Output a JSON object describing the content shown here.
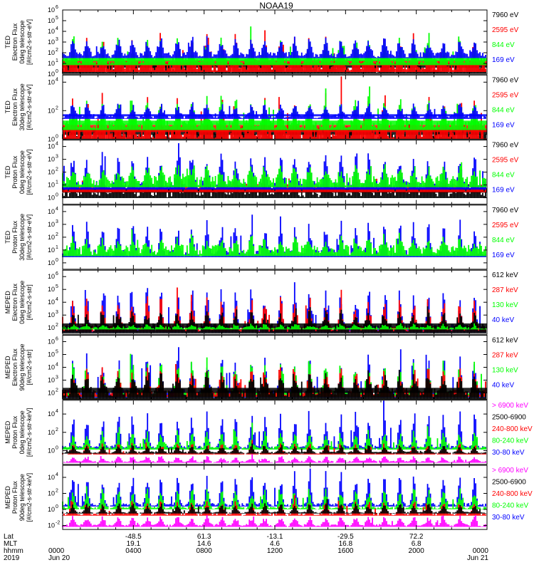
{
  "chart_data": {
    "type": "bar",
    "title": "NOAA19",
    "x_range_hours": [
      0,
      24
    ],
    "panels": [
      {
        "id": "ted-e-0",
        "ylabel_lines": [
          "TED",
          "Electron Flux",
          "0deg telescope",
          "[#/cm2-s-str-eV]"
        ],
        "ylim_exp": [
          0,
          6
        ],
        "yticks": [
          {
            "t": "10",
            "e": "0"
          },
          {
            "t": "10",
            "e": "1"
          },
          {
            "t": "10",
            "e": "2"
          },
          {
            "t": "10",
            "e": "3"
          },
          {
            "t": "10",
            "e": "4"
          },
          {
            "t": "10",
            "e": "5"
          },
          {
            "t": "10",
            "e": "6"
          }
        ],
        "series": [
          {
            "name": "7960 eV",
            "color": "#000000",
            "base": 0.6,
            "amp": 1.4,
            "noise": 0.9,
            "fill": 0.75
          },
          {
            "name": "2595 eV",
            "color": "#ff0000",
            "base": 0.8,
            "amp": 2.8,
            "noise": 1.0,
            "fill": 0.35
          },
          {
            "name": "844 eV",
            "color": "#00ff00",
            "base": 1.2,
            "amp": 2.2,
            "noise": 0.6,
            "fill": 0.18
          },
          {
            "name": "169 eV",
            "color": "#0000ff",
            "base": 1.8,
            "amp": 1.6,
            "noise": 0.5,
            "fill": 0.08
          }
        ]
      },
      {
        "id": "ted-e-30",
        "ylabel_lines": [
          "TED",
          "Electron Flux",
          "30deg telescope",
          "[#/cm2-s-str-eV]"
        ],
        "ylim_exp": [
          0,
          4.5
        ],
        "yticks": [
          {
            "t": "10",
            "e": "0"
          },
          {
            "t": "10",
            "e": "2"
          },
          {
            "t": "10",
            "e": "4"
          }
        ],
        "series": [
          {
            "name": "7960 eV",
            "color": "#000000",
            "base": 0.3,
            "amp": 1.2,
            "noise": 0.8,
            "fill": 0.8
          },
          {
            "name": "2595 eV",
            "color": "#ff0000",
            "base": 0.5,
            "amp": 2.5,
            "noise": 1.0,
            "fill": 0.35
          },
          {
            "name": "844 eV",
            "color": "#00ff00",
            "base": 1.0,
            "amp": 2.0,
            "noise": 0.6,
            "fill": 0.15
          },
          {
            "name": "169 eV",
            "color": "#0000ff",
            "base": 1.6,
            "amp": 1.0,
            "noise": 0.3,
            "fill": 0.3
          }
        ]
      },
      {
        "id": "ted-p-0",
        "ylabel_lines": [
          "TED",
          "Proton Flux",
          "0deg telescope",
          "[#/cm2-s-str-eV]"
        ],
        "ylim_exp": [
          -0.5,
          4.5
        ],
        "yticks": [
          {
            "t": "10",
            "e": "0"
          },
          {
            "t": "10",
            "e": "1"
          },
          {
            "t": "10",
            "e": "2"
          },
          {
            "t": "10",
            "e": "3"
          },
          {
            "t": "10",
            "e": "4"
          }
        ],
        "series": [
          {
            "name": "7960 eV",
            "color": "#000000",
            "base": 0.4,
            "amp": 1.0,
            "noise": 0.7,
            "fill": 0.3
          },
          {
            "name": "2595 eV",
            "color": "#ff0000",
            "base": 0.8,
            "amp": 1.3,
            "noise": 0.6,
            "fill": 0.1
          },
          {
            "name": "169 eV",
            "color": "#0000ff",
            "base": 1.0,
            "amp": 2.6,
            "noise": 0.6,
            "fill": 0.05
          },
          {
            "name": "844 eV",
            "color": "#00ff00",
            "base": 1.3,
            "amp": 1.1,
            "noise": 0.8,
            "fill": 0.05
          }
        ]
      },
      {
        "id": "ted-p-30",
        "ylabel_lines": [
          "TED",
          "Proton Flux",
          "30deg telescope",
          "[#/cm2-s-str-eV]"
        ],
        "ylim_exp": [
          -0.5,
          4.5
        ],
        "yticks": [
          {
            "t": "10",
            "e": "0"
          },
          {
            "t": "10",
            "e": "1"
          },
          {
            "t": "10",
            "e": "2"
          },
          {
            "t": "10",
            "e": "3"
          },
          {
            "t": "10",
            "e": "4"
          }
        ],
        "series": [
          {
            "name": "169 eV",
            "color": "#0000ff",
            "base": 0.8,
            "amp": 2.6,
            "noise": 0.6,
            "fill": 0.05
          },
          {
            "name": "844 eV",
            "color": "#00ff00",
            "base": 1.0,
            "amp": 1.0,
            "noise": 0.8,
            "fill": 0.05
          },
          {
            "name": "7960 eV",
            "color": "#000000",
            "base": null
          },
          {
            "name": "2595 eV",
            "color": "#ff0000",
            "base": null
          }
        ]
      },
      {
        "id": "meped-e-0",
        "ylabel_lines": [
          "MEPED",
          "Electron Flux",
          "0deg telescope",
          "[#/cm2-s-str]"
        ],
        "ylim_exp": [
          1.5,
          6.5
        ],
        "yticks": [
          {
            "t": "10",
            "e": "2"
          },
          {
            "t": "10",
            "e": "3"
          },
          {
            "t": "10",
            "e": "4"
          },
          {
            "t": "10",
            "e": "5"
          },
          {
            "t": "10",
            "e": "6"
          }
        ],
        "series": [
          {
            "name": "40 keV",
            "color": "#0000ff",
            "base": 2.0,
            "amp": 3.5,
            "noise": 0.6,
            "fill": 0.05
          },
          {
            "name": "287 keV",
            "color": "#ff0000",
            "base": 2.0,
            "amp": 2.5,
            "noise": 0.5,
            "fill": 0.05
          },
          {
            "name": "612 keV",
            "color": "#000000",
            "base": 2.0,
            "amp": 1.5,
            "noise": 0.7,
            "fill": 0.7
          },
          {
            "name": "130 keV",
            "color": "#00ff00",
            "base": 2.0,
            "amp": 0.3,
            "noise": 0.2,
            "fill": 0.02
          }
        ]
      },
      {
        "id": "meped-e-90",
        "ylabel_lines": [
          "MEPED",
          "Electron Flux",
          "90deg telescope",
          "[#/cm2-s-str]"
        ],
        "ylim_exp": [
          1.5,
          6.5
        ],
        "yticks": [
          {
            "t": "10",
            "e": "2"
          },
          {
            "t": "10",
            "e": "3"
          },
          {
            "t": "10",
            "e": "4"
          },
          {
            "t": "10",
            "e": "5"
          },
          {
            "t": "10",
            "e": "6"
          }
        ],
        "series": [
          {
            "name": "40 keV",
            "color": "#0000ff",
            "base": 2.0,
            "amp": 3.2,
            "noise": 0.6,
            "fill": 0.05
          },
          {
            "name": "130 keV",
            "color": "#00ff00",
            "base": 2.0,
            "amp": 2.6,
            "noise": 0.5,
            "fill": 0.05
          },
          {
            "name": "287 keV",
            "color": "#ff0000",
            "base": 2.0,
            "amp": 2.0,
            "noise": 0.5,
            "fill": 0.05
          },
          {
            "name": "612 keV",
            "color": "#000000",
            "base": 2.0,
            "amp": 1.6,
            "noise": 0.8,
            "fill": 0.6
          }
        ]
      },
      {
        "id": "meped-p-0",
        "ylabel_lines": [
          "MEPED",
          "Proton Flux",
          "0deg telescope",
          "[#/cm2-s-str-keV]"
        ],
        "ylim_exp": [
          -1.5,
          5.5
        ],
        "yticks": [
          {
            "t": "10",
            "e": "0"
          },
          {
            "t": "10",
            "e": "2"
          },
          {
            "t": "10",
            "e": "4"
          }
        ],
        "series": [
          {
            "name": "30-80 keV",
            "color": "#0000ff",
            "base": 0.4,
            "amp": 4.0,
            "noise": 0.3,
            "fill": 0.02
          },
          {
            "name": "80-240 keV",
            "color": "#00ff00",
            "base": 0.3,
            "amp": 2.0,
            "noise": 0.3,
            "fill": 0.04
          },
          {
            "name": "240-800 keV",
            "color": "#ff0000",
            "base": -0.3,
            "amp": 1.2,
            "noise": 0.2,
            "fill": 0.02
          },
          {
            "name": "2500-6900",
            "color": "#000000",
            "base": -0.2,
            "amp": 0.8,
            "noise": 0.2,
            "fill": 0.01
          },
          {
            "name": "> 6900 keV",
            "color": "#ff00ff",
            "base": -1.2,
            "amp": 0.6,
            "noise": 0.2,
            "fill": 0.0
          }
        ]
      },
      {
        "id": "meped-p-90",
        "ylabel_lines": [
          "MEPED",
          "Proton Flux",
          "90deg telescope",
          "[#/cm2-s-str-keV]"
        ],
        "ylim_exp": [
          -2.5,
          5.5
        ],
        "yticks": [
          {
            "t": "10",
            "e": "-2"
          },
          {
            "t": "10",
            "e": "0"
          },
          {
            "t": "10",
            "e": "2"
          },
          {
            "t": "10",
            "e": "4"
          }
        ],
        "series": [
          {
            "name": "30-80 keV",
            "color": "#0000ff",
            "base": 0.6,
            "amp": 4.2,
            "noise": 0.4,
            "fill": 0.03
          },
          {
            "name": "80-240 keV",
            "color": "#00ff00",
            "base": 0.2,
            "amp": 2.6,
            "noise": 0.3,
            "fill": 0.05
          },
          {
            "name": "240-800 keV",
            "color": "#ff0000",
            "base": -0.6,
            "amp": 1.8,
            "noise": 0.3,
            "fill": 0.02
          },
          {
            "name": "2500-6900",
            "color": "#000000",
            "base": -0.4,
            "amp": 1.2,
            "noise": 0.2,
            "fill": 0.01
          },
          {
            "name": "> 6900 keV",
            "color": "#ff00ff",
            "base": -2.0,
            "amp": 1.2,
            "noise": 0.3,
            "fill": 0.0
          }
        ]
      }
    ],
    "legend_order": [
      [
        "7960 eV",
        "2595 eV",
        "844 eV",
        "169 eV"
      ],
      [
        "7960 eV",
        "2595 eV",
        "844 eV",
        "169 eV"
      ],
      [
        "7960 eV",
        "2595 eV",
        "844 eV",
        "169 eV"
      ],
      [
        "7960 eV",
        "2595 eV",
        "844 eV",
        "169 eV"
      ],
      [
        "612 keV",
        "287 keV",
        "130 keV",
        "40 keV"
      ],
      [
        "612 keV",
        "287 keV",
        "130 keV",
        "40 keV"
      ],
      [
        "> 6900 keV",
        "2500-6900",
        "240-800 keV",
        "80-240 keV",
        "30-80 keV"
      ],
      [
        "> 6900 keV",
        "2500-6900",
        "240-800 keV",
        "80-240 keV",
        "30-80 keV"
      ]
    ],
    "bottom_axis": {
      "row_labels": [
        "Lat",
        "MLT",
        "hhmm",
        "2019"
      ],
      "ticks": [
        {
          "hour": 0,
          "lat": "",
          "mlt": "",
          "hhmm": "0000",
          "date": "Jun 20"
        },
        {
          "hour": 4,
          "lat": "-48.5",
          "mlt": "19.1",
          "hhmm": "0400",
          "date": ""
        },
        {
          "hour": 8,
          "lat": "61.3",
          "mlt": "14.6",
          "hhmm": "0800",
          "date": ""
        },
        {
          "hour": 12,
          "lat": "-13.1",
          "mlt": "4.6",
          "hhmm": "1200",
          "date": ""
        },
        {
          "hour": 16,
          "lat": "-29.5",
          "mlt": "16.8",
          "hhmm": "1600",
          "date": ""
        },
        {
          "hour": 20,
          "lat": "72.2",
          "mlt": "6.8",
          "hhmm": "2000",
          "date": ""
        },
        {
          "hour": 24,
          "lat": "",
          "mlt": "",
          "hhmm": "0000",
          "date": "Jun 21"
        }
      ]
    }
  }
}
